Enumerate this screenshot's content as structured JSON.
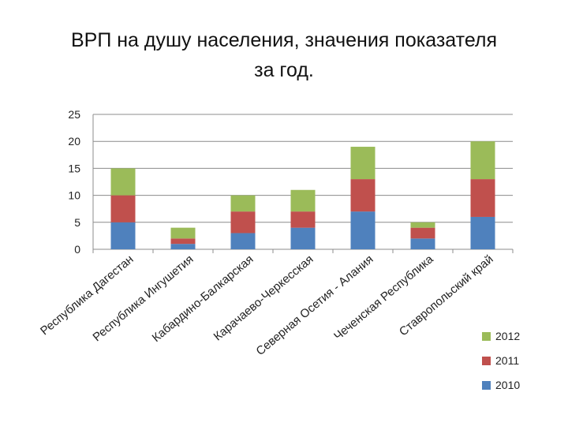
{
  "title_line1": "ВРП на душу населения, значения показателя",
  "title_line2": "за год.",
  "chart_data": {
    "type": "bar",
    "stacked": true,
    "title": "ВРП на душу населения, значения показателя за год.",
    "categories": [
      "Республика Дагестан",
      "Республика Ингушетия",
      "Кабардино-Балкарская",
      "Карачаево-Черкесская",
      "Северная Осетия - Алания",
      "Чеченская Республика",
      "Ставропольский край"
    ],
    "series": [
      {
        "name": "2010",
        "color": "#4f81bd",
        "values": [
          5,
          1,
          3,
          4,
          7,
          2,
          6
        ]
      },
      {
        "name": "2011",
        "color": "#c0504d",
        "values": [
          5,
          1,
          4,
          3,
          6,
          2,
          7
        ]
      },
      {
        "name": "2012",
        "color": "#9bbb59",
        "values": [
          5,
          2,
          3,
          4,
          6,
          1,
          7
        ]
      }
    ],
    "ylim": [
      0,
      25
    ],
    "yticks": [
      "0",
      "5",
      "10",
      "15",
      "20",
      "25"
    ],
    "grid": true,
    "legend": "right"
  }
}
